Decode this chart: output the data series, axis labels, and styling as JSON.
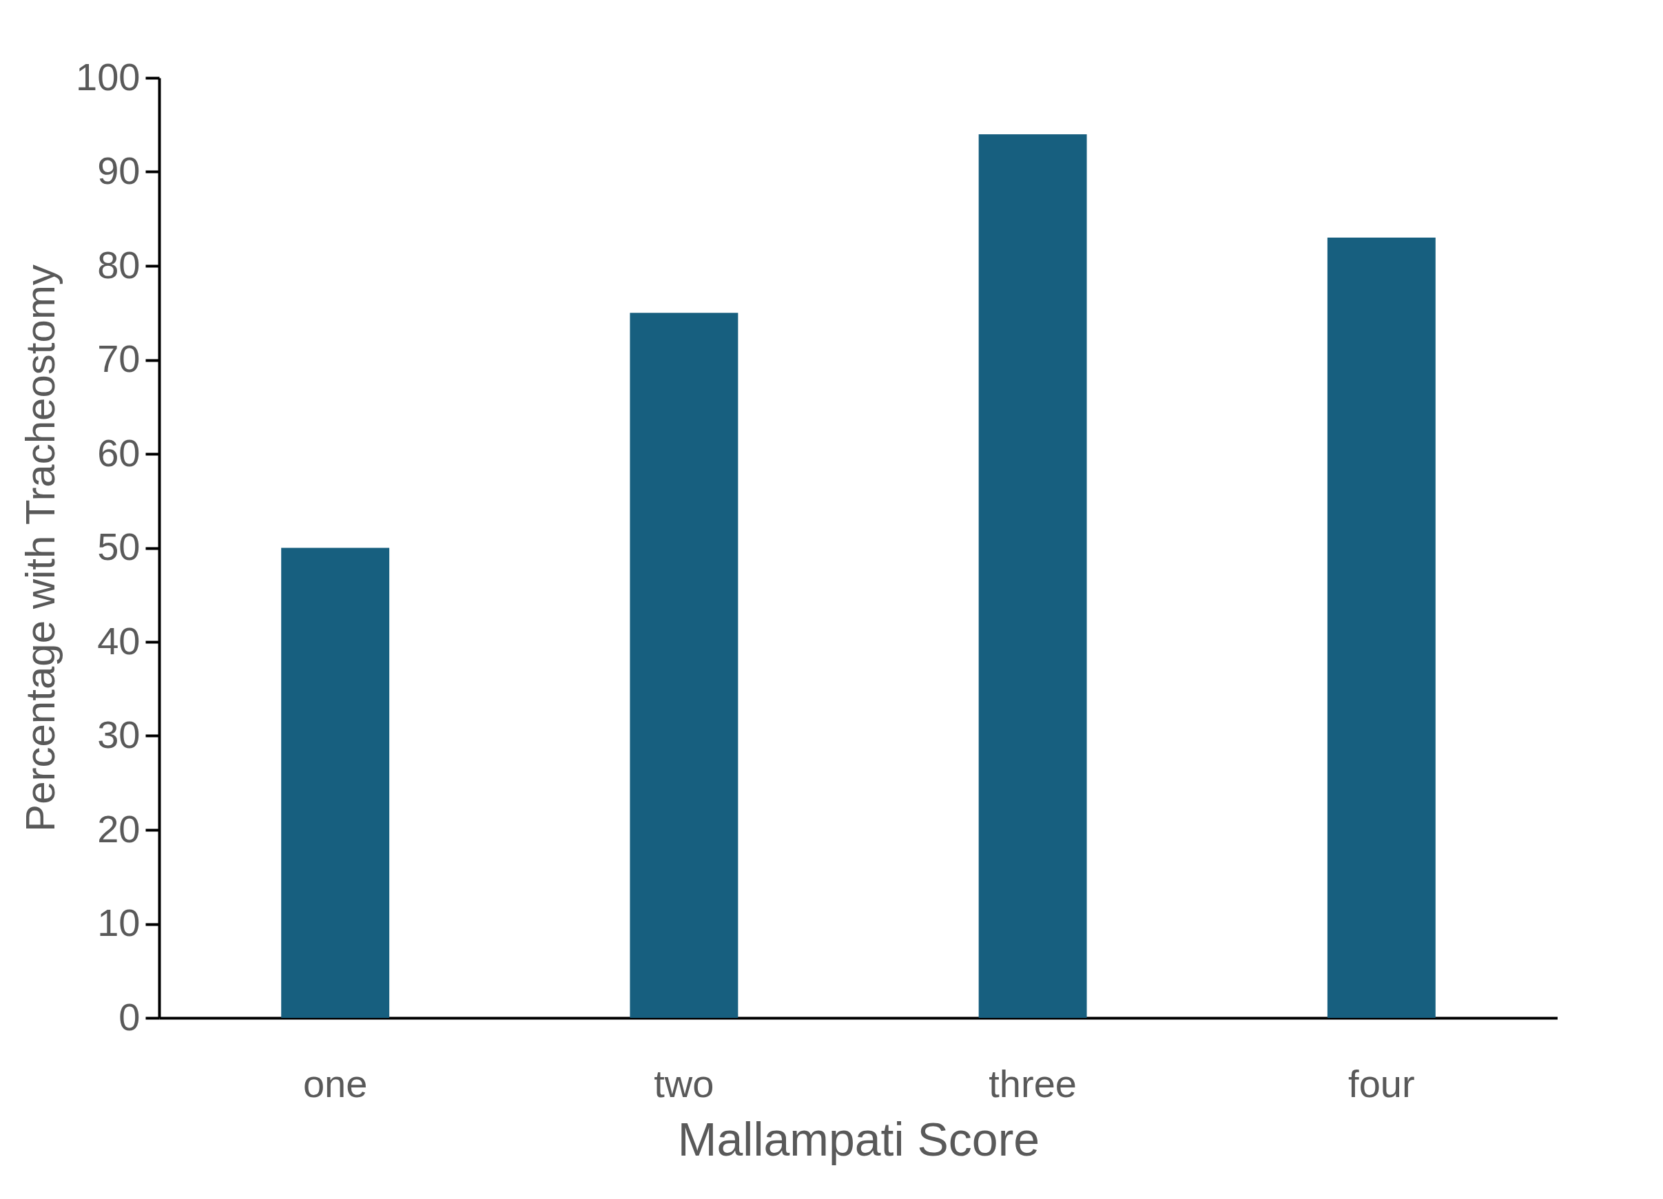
{
  "chart_data": {
    "type": "bar",
    "xlabel": "Mallampati Score",
    "ylabel": "Percentage with Tracheostomy",
    "categories": [
      "one",
      "two",
      "three",
      "four"
    ],
    "values": [
      50,
      75,
      94,
      83
    ],
    "color": "#175f7f",
    "ylim": [
      0,
      100
    ],
    "yticks": [
      0,
      10,
      20,
      30,
      40,
      50,
      60,
      70,
      80,
      90,
      100
    ],
    "grid": false
  }
}
